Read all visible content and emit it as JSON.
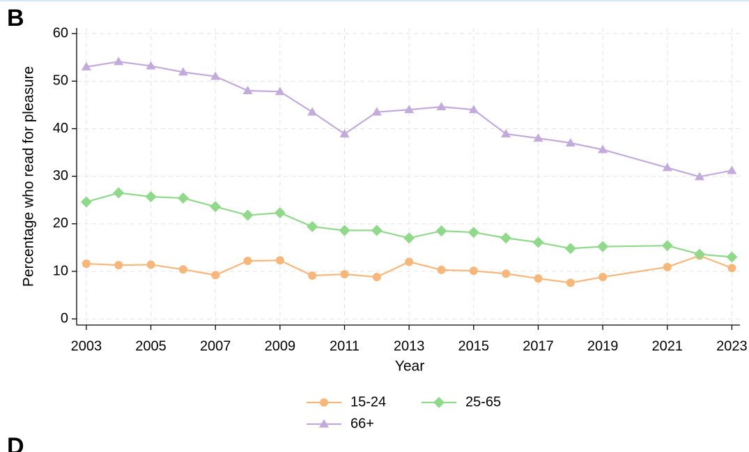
{
  "panel_label": "B",
  "next_panel_label": "D",
  "chart_data": {
    "type": "line",
    "x_label": "Year",
    "y_label": "Percentage who read for pleasure",
    "x": [
      2003,
      2004,
      2005,
      2006,
      2007,
      2008,
      2009,
      2010,
      2011,
      2012,
      2013,
      2014,
      2015,
      2016,
      2017,
      2018,
      2019,
      2021,
      2022,
      2023
    ],
    "series": [
      {
        "name": "15-24",
        "color": "#f7b77b",
        "marker": "circle",
        "values": [
          11.6,
          11.3,
          11.4,
          10.4,
          9.2,
          12.2,
          12.3,
          9.1,
          9.4,
          8.8,
          12.0,
          10.3,
          10.1,
          9.5,
          8.5,
          7.6,
          8.8,
          10.9,
          13.3,
          10.7
        ]
      },
      {
        "name": "25-65",
        "color": "#90d98a",
        "marker": "diamond",
        "values": [
          24.6,
          26.5,
          25.7,
          25.4,
          23.6,
          21.8,
          22.3,
          19.4,
          18.6,
          18.6,
          17.0,
          18.5,
          18.2,
          17.0,
          16.1,
          14.8,
          15.2,
          15.4,
          13.6,
          13.0
        ]
      },
      {
        "name": "66+",
        "color": "#c3aadd",
        "marker": "triangle",
        "values": [
          53.0,
          54.1,
          53.2,
          51.9,
          51.0,
          48.0,
          47.8,
          43.5,
          38.9,
          43.5,
          44.0,
          44.6,
          44.0,
          38.9,
          38.0,
          37.0,
          35.6,
          31.8,
          29.9,
          31.2
        ]
      }
    ],
    "xlim": [
      2002.7,
      2023.25
    ],
    "xticks": [
      2003,
      2005,
      2007,
      2009,
      2011,
      2013,
      2015,
      2017,
      2019,
      2021,
      2023
    ],
    "ylim": [
      -1.3,
      61.2
    ],
    "yticks": [
      0,
      10,
      20,
      30,
      40,
      50,
      60
    ],
    "grid": true,
    "legend": "bottom"
  }
}
